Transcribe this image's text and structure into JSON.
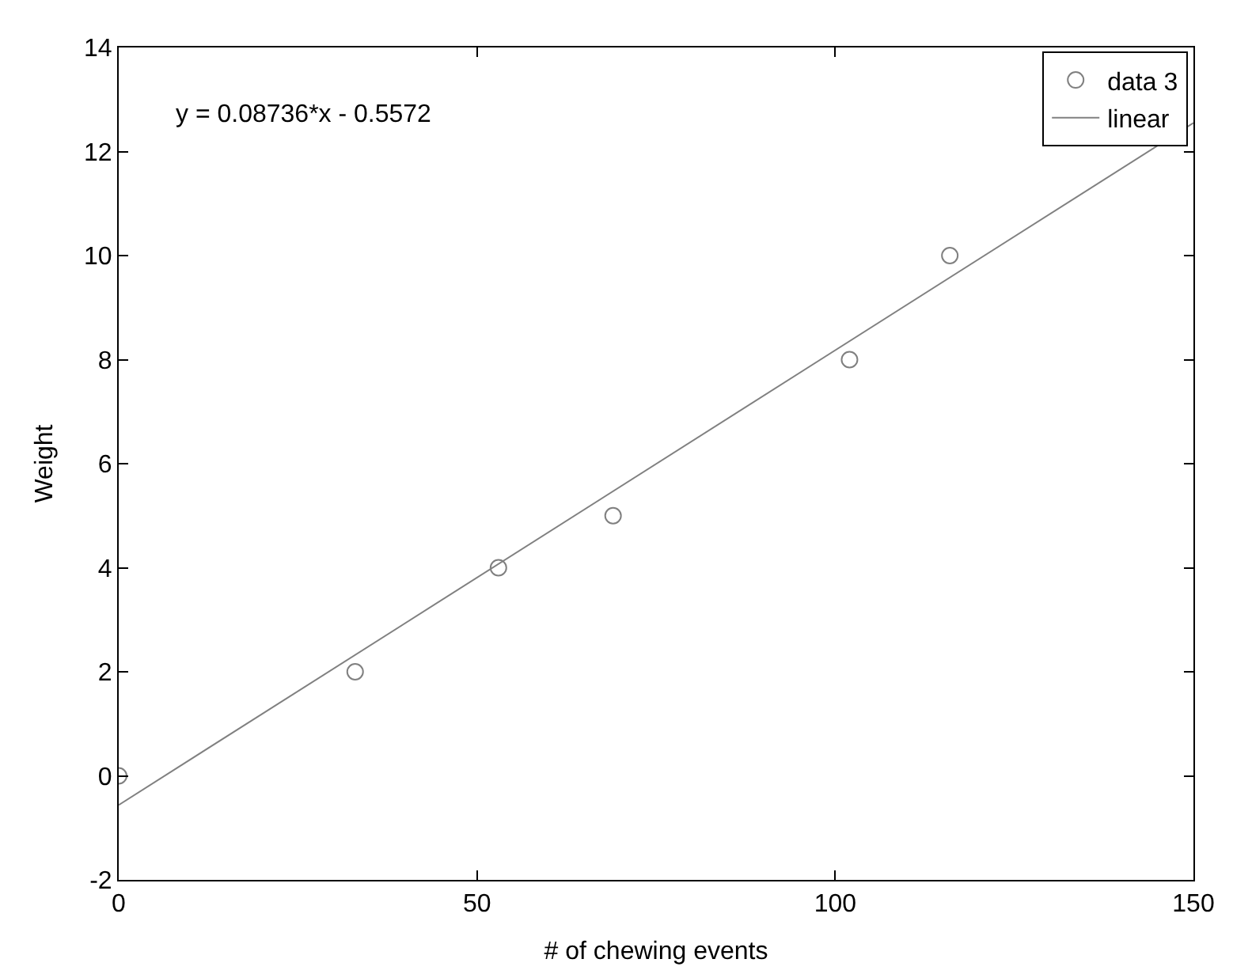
{
  "chart_data": {
    "type": "scatter",
    "xlabel": "# of chewing events",
    "ylabel": "Weight",
    "annotations": [
      "y = 0.08736*x - 0.5572"
    ],
    "series": [
      {
        "name": "data 3",
        "marker": "circle",
        "color": "#808080",
        "x": [
          0,
          33,
          53,
          69,
          102,
          116
        ],
        "values": [
          0,
          2,
          4,
          5,
          8,
          10
        ]
      },
      {
        "name": "linear",
        "type": "line",
        "marker": "none",
        "line_style": "solid",
        "color": "#808080",
        "x": [
          0,
          150
        ],
        "values": [
          -0.56,
          12.55
        ]
      }
    ],
    "xlim": [
      0,
      150
    ],
    "xticks": [
      0,
      50,
      100,
      150
    ],
    "ylim": [
      -2,
      14
    ],
    "yticks": [
      -2,
      0,
      2,
      4,
      6,
      8,
      10,
      12,
      14
    ],
    "legend": "top right"
  }
}
